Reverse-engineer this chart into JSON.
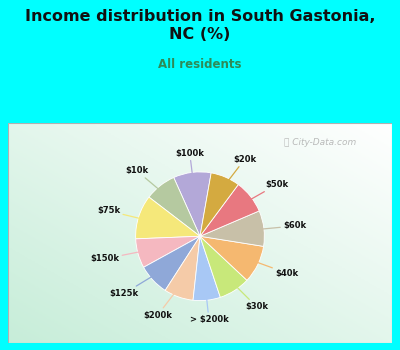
{
  "title": "Income distribution in South Gastonia,\nNC (%)",
  "subtitle": "All residents",
  "labels": [
    "$100k",
    "$10k",
    "$75k",
    "$150k",
    "$125k",
    "$200k",
    "> $200k",
    "$30k",
    "$40k",
    "$60k",
    "$50k",
    "$20k"
  ],
  "sizes": [
    9.0,
    7.5,
    10.5,
    7.0,
    7.5,
    7.0,
    6.5,
    7.5,
    9.0,
    8.5,
    8.0,
    7.0
  ],
  "colors": [
    "#b3a8d8",
    "#b5c9a0",
    "#f5e87a",
    "#f5b8c0",
    "#8fa8d8",
    "#f5cba8",
    "#a8c8f5",
    "#c8e87a",
    "#f5b870",
    "#c8c0a8",
    "#e87880",
    "#d4aa40"
  ],
  "background_cyan": "#00ffff",
  "title_color": "#111111",
  "subtitle_color": "#2e8b57",
  "watermark": "City-Data.com",
  "startangle": 80
}
